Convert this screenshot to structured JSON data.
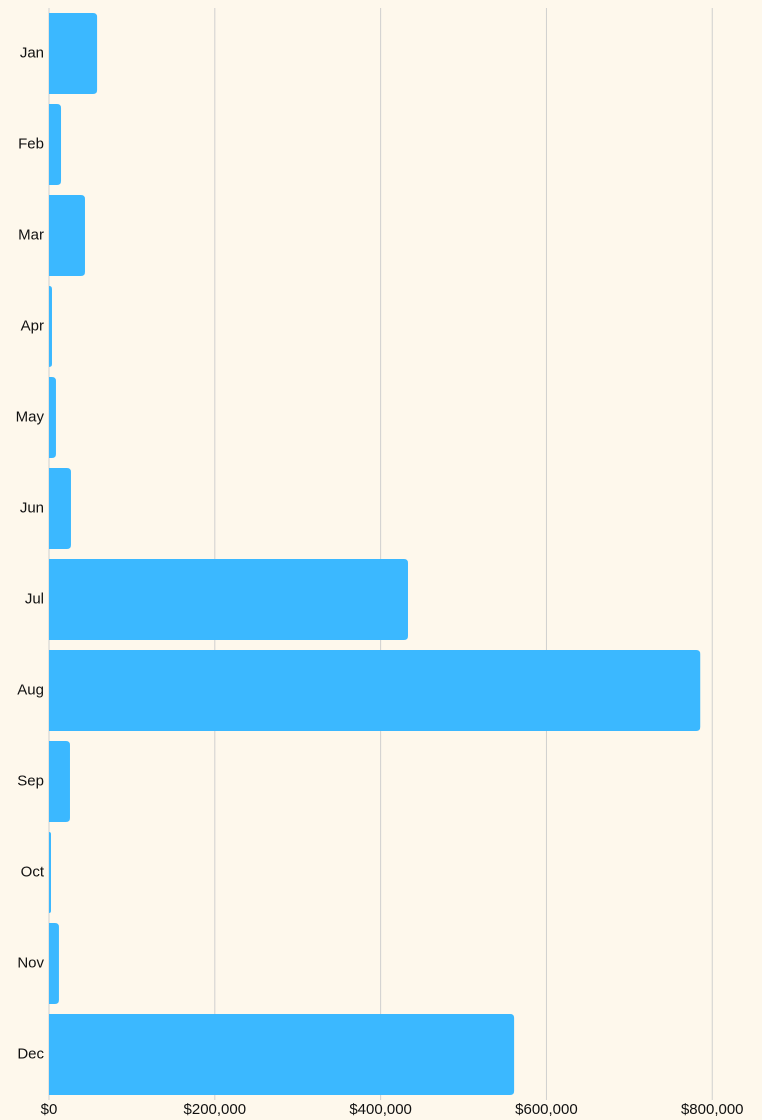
{
  "chart_data": {
    "type": "bar",
    "orientation": "horizontal",
    "categories": [
      "Jan",
      "Feb",
      "Mar",
      "Apr",
      "May",
      "Jun",
      "Jul",
      "Aug",
      "Sep",
      "Oct",
      "Nov",
      "Dec"
    ],
    "values": [
      58000,
      14500,
      43400,
      3600,
      8400,
      26500,
      433000,
      785500,
      25300,
      2400,
      12000,
      561000
    ],
    "color": "#3bb8ff",
    "xlim": [
      0,
      860000
    ],
    "xticks": [
      {
        "value": 0,
        "label": "$0"
      },
      {
        "value": 200000,
        "label": "$200,000"
      },
      {
        "value": 400000,
        "label": "$400,000"
      },
      {
        "value": 600000,
        "label": "$600,000"
      },
      {
        "value": 800000,
        "label": "$800,000"
      }
    ],
    "grid": true
  }
}
